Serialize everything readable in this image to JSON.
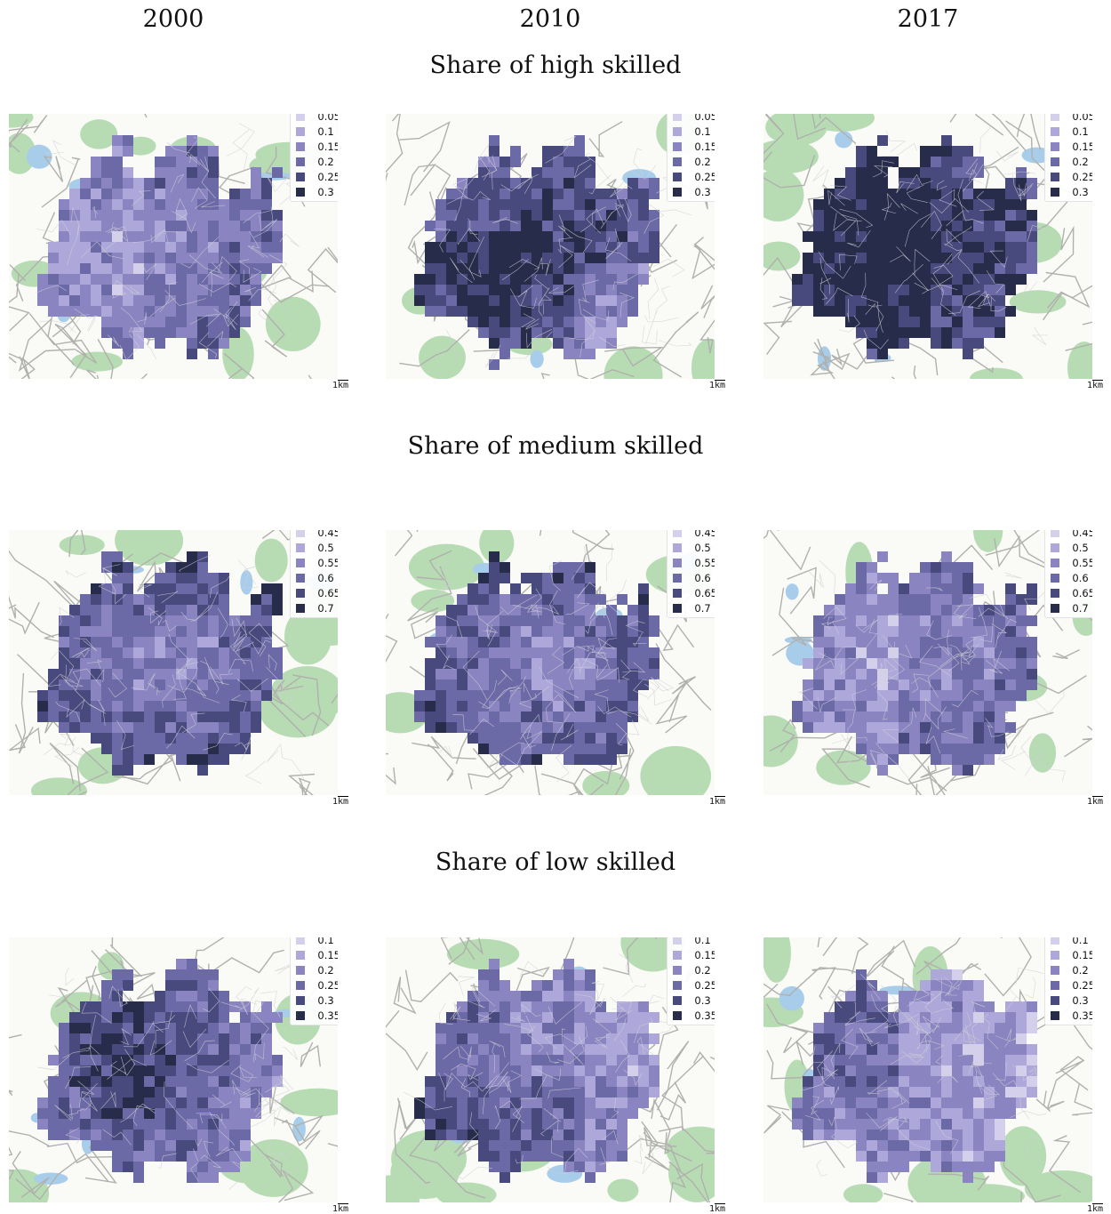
{
  "columns": [
    {
      "year": "2000"
    },
    {
      "year": "2010"
    },
    {
      "year": "2017"
    }
  ],
  "rows": [
    {
      "title": "Share of high skilled",
      "legend": [
        "0.05",
        "0.1",
        "0.15",
        "0.2",
        "0.25",
        "0.3"
      ],
      "intensity": [
        "low-central",
        "high-central",
        "very-high-central"
      ]
    },
    {
      "title": "Share of medium skilled",
      "legend": [
        "0.45",
        "0.5",
        "0.55",
        "0.6",
        "0.65",
        "0.7"
      ],
      "intensity": [
        "high-periphery",
        "high-periphery",
        "low-central"
      ]
    },
    {
      "title": "Share of low skilled",
      "legend": [
        "0.1",
        "0.15",
        "0.2",
        "0.25",
        "0.3",
        "0.35"
      ],
      "intensity": [
        "very-high-west",
        "mid-west",
        "low-east"
      ]
    }
  ],
  "scale_label": "1km",
  "colors": {
    "class_1": "#d4d0ec",
    "class_2": "#aea8da",
    "class_3": "#8a84c0",
    "class_4": "#6c6aa6",
    "class_5": "#48497c",
    "class_6": "#262c4a",
    "green_space": "#b7dcb3",
    "water": "#a7cdea",
    "road": "#b0b0ad"
  }
}
